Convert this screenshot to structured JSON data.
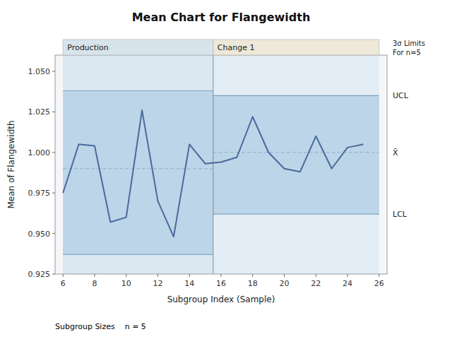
{
  "chart_data": {
    "type": "line",
    "title": "Mean Chart for Flangewidth",
    "x_label": "Subgroup Index (Sample)",
    "y_label": "Mean of Flangewidth",
    "x": [
      6,
      7,
      8,
      9,
      10,
      11,
      12,
      13,
      14,
      15,
      16,
      17,
      18,
      19,
      20,
      21,
      22,
      23,
      24,
      25
    ],
    "series": [
      {
        "color": "#4a6a9a",
        "values": [
          0.975,
          1.005,
          1.004,
          0.957,
          0.96,
          1.026,
          0.97,
          0.948,
          1.005,
          0.993,
          0.994,
          0.997,
          1.022,
          1.0,
          0.99,
          0.988,
          1.01,
          0.99,
          1.003,
          1.005
        ]
      }
    ],
    "phases": [
      {
        "label": "Production",
        "x_start": 6,
        "x_end": 15.5,
        "ucl": 1.038,
        "lcl": 0.937,
        "mean": 0.99
      },
      {
        "label": "Change 1",
        "x_start": 15.5,
        "x_end": 26,
        "ucl": 1.035,
        "lcl": 0.962,
        "mean": 1.0
      }
    ],
    "limit_labels": {
      "ucl": "UCL",
      "mean": "X̄",
      "lcl": "LCL"
    },
    "annotations": [
      "3σ Limits",
      "For n=5"
    ],
    "footnote": "Subgroup Sizes    n = 5",
    "xlim": [
      5.5,
      26.5
    ],
    "xticks": [
      6,
      8,
      10,
      12,
      14,
      16,
      18,
      20,
      22,
      24,
      26
    ],
    "ylim": [
      0.925,
      1.06
    ],
    "yticks": [
      0.925,
      {
        "value": 0.95,
        "label": "0.950"
      },
      0.975,
      {
        "value": 1,
        "label": "1.000"
      },
      1.025,
      {
        "value": 1.05,
        "label": "1.050"
      }
    ],
    "grid": false
  }
}
